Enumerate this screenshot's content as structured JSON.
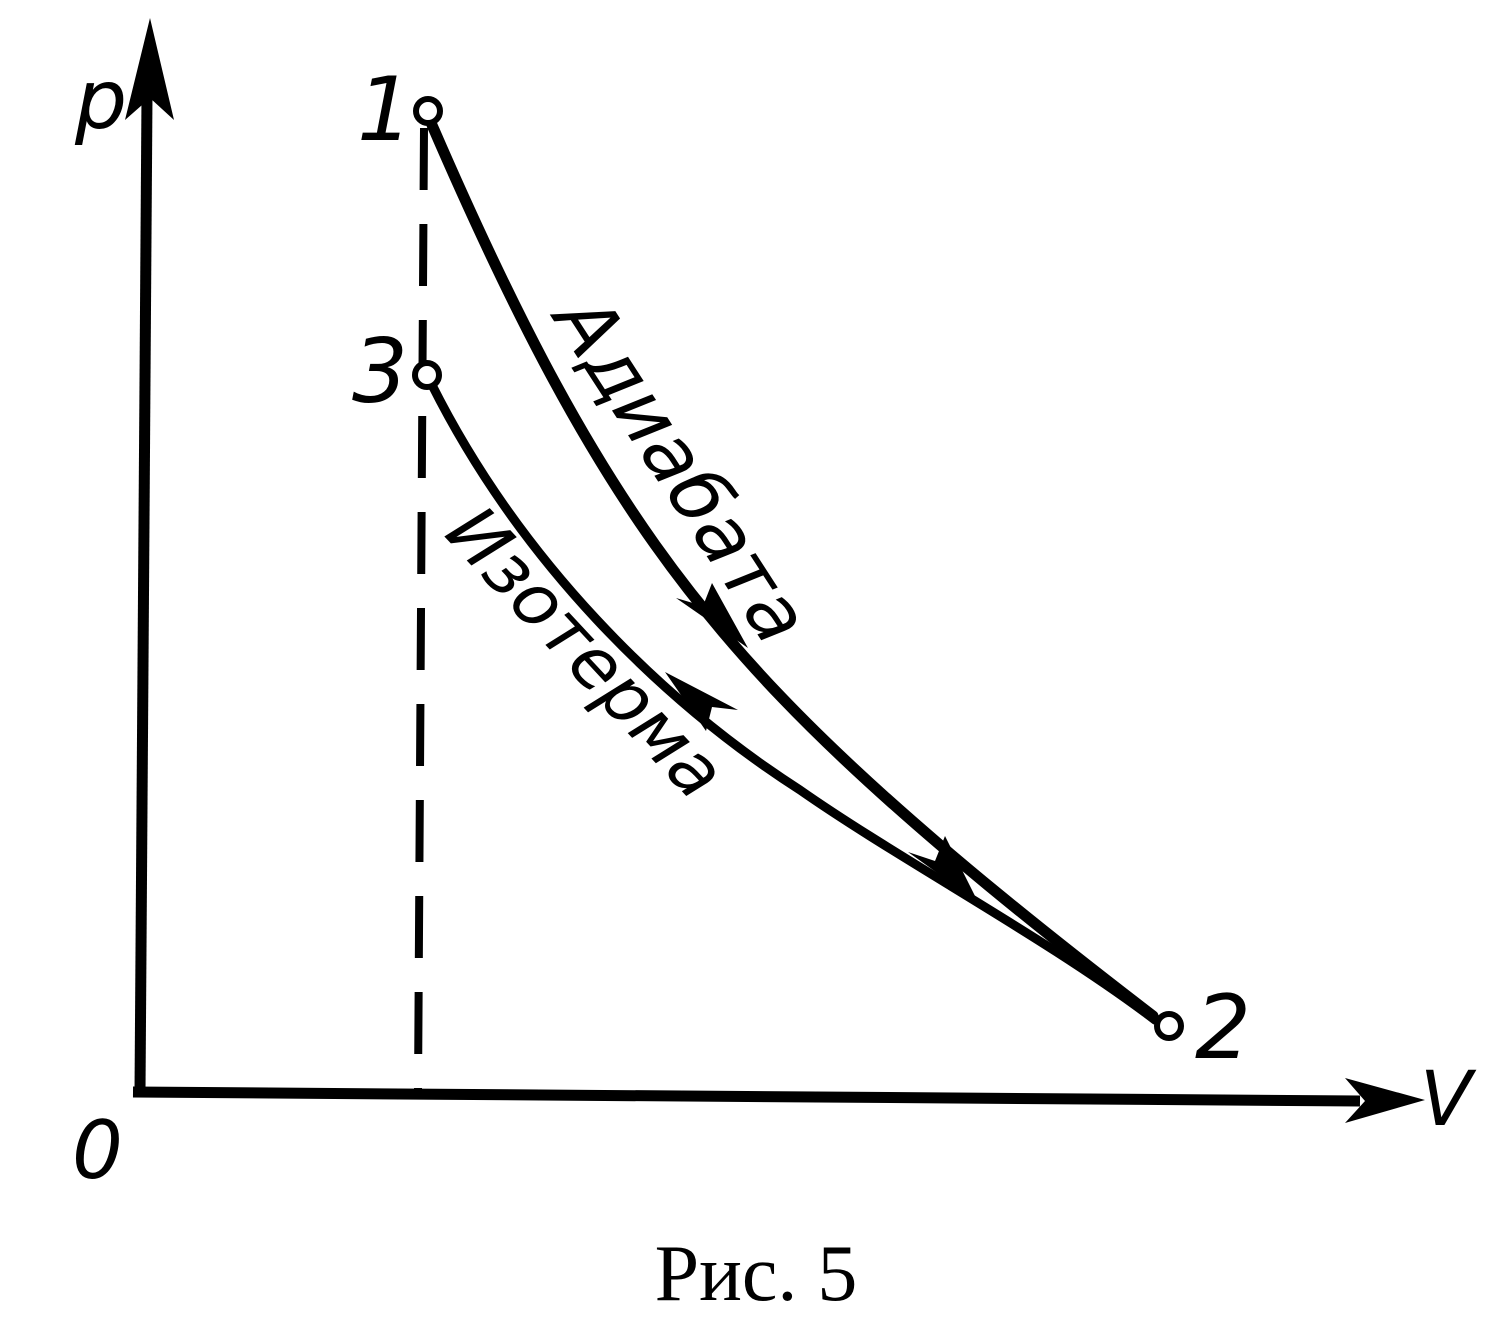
{
  "axes": {
    "x_label": "V",
    "y_label": "p",
    "origin_label": "0"
  },
  "points": {
    "p1": "1",
    "p2": "2",
    "p3": "3"
  },
  "curves": {
    "adiabat_label": "Адиабата",
    "isotherm_label": "Изотерма"
  },
  "caption": "Рис. 5",
  "colors": {
    "ink": "#000000",
    "background": "#ffffff"
  }
}
